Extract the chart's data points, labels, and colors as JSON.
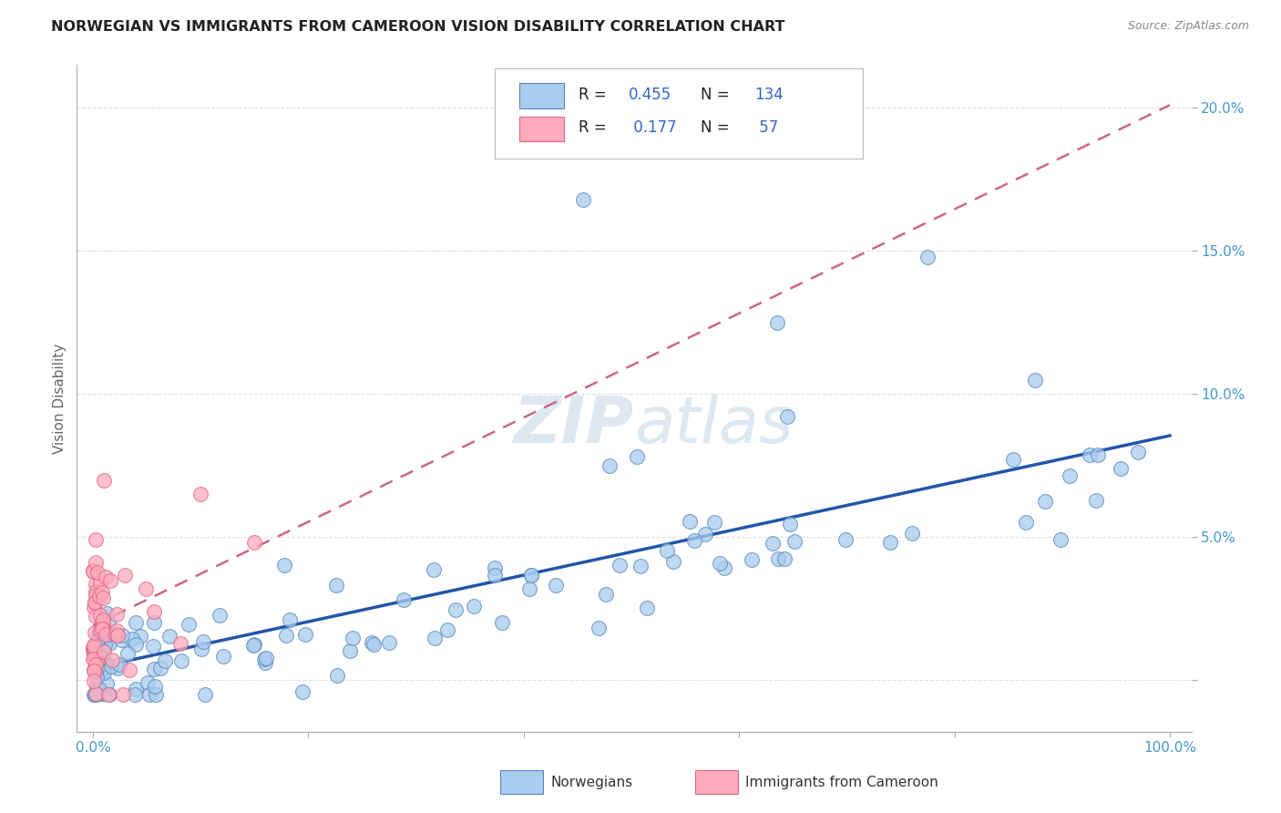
{
  "title": "NORWEGIAN VS IMMIGRANTS FROM CAMEROON VISION DISABILITY CORRELATION CHART",
  "source": "Source: ZipAtlas.com",
  "ylabel": "Vision Disability",
  "norwegian_R": 0.455,
  "norwegian_N": 134,
  "cameroon_R": 0.177,
  "cameroon_N": 57,
  "blue_fill": "#aaccee",
  "blue_edge": "#5588bb",
  "pink_fill": "#ffaabb",
  "pink_edge": "#dd6688",
  "blue_line": "#2255aa",
  "pink_line": "#cc6688",
  "axis_tick_color": "#4499cc",
  "watermark_color": "#dde8f0",
  "background_color": "#ffffff",
  "grid_color": "#dddddd",
  "title_color": "#222222",
  "source_color": "#888888",
  "ylabel_color": "#666666",
  "legend_text_color": "#3366cc"
}
